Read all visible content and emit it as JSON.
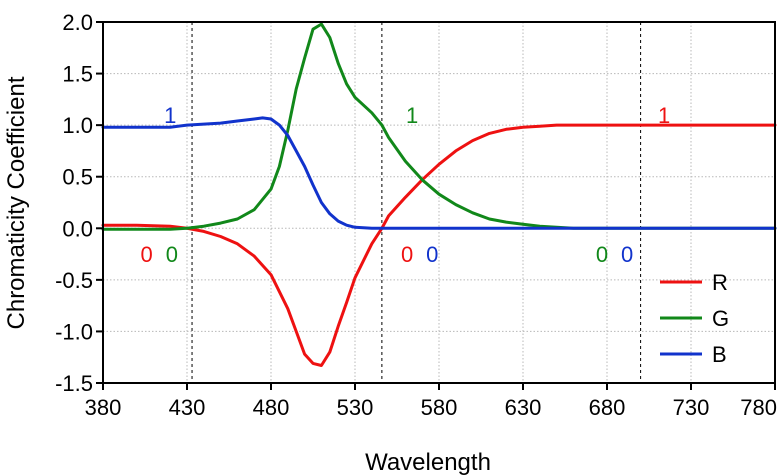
{
  "chart_data": {
    "type": "line",
    "title": "",
    "xlabel": "Wavelength",
    "ylabel": "Chromaticity Coefficient",
    "xlim": [
      380,
      780
    ],
    "ylim": [
      -1.5,
      2.0
    ],
    "xticks": [
      "380",
      "430",
      "480",
      "530",
      "580",
      "630",
      "680",
      "730",
      "780"
    ],
    "yticks": [
      "2.0",
      "1.5",
      "1.0",
      "0.5",
      "0.0",
      "-0.5",
      "-1.0",
      "-1.5"
    ],
    "grid": true,
    "legend_position": "bottom-right",
    "vertical_reference_lines_x": [
      433,
      546,
      700
    ],
    "series": [
      {
        "name": "R",
        "color": "#ee1111",
        "x": [
          380,
          400,
          420,
          430,
          440,
          450,
          460,
          470,
          480,
          490,
          495,
          500,
          505,
          510,
          515,
          520,
          525,
          530,
          540,
          546,
          550,
          560,
          570,
          580,
          590,
          600,
          610,
          620,
          630,
          640,
          650,
          660,
          680,
          700,
          730,
          780
        ],
        "y": [
          0.03,
          0.03,
          0.02,
          0.0,
          -0.03,
          -0.08,
          -0.15,
          -0.27,
          -0.45,
          -0.78,
          -1.0,
          -1.22,
          -1.31,
          -1.33,
          -1.2,
          -0.95,
          -0.72,
          -0.48,
          -0.15,
          0.0,
          0.12,
          0.3,
          0.47,
          0.62,
          0.75,
          0.85,
          0.92,
          0.96,
          0.98,
          0.99,
          1.0,
          1.0,
          1.0,
          1.0,
          1.0,
          1.0
        ]
      },
      {
        "name": "G",
        "color": "#11881a",
        "x": [
          380,
          420,
          430,
          440,
          450,
          460,
          470,
          480,
          485,
          490,
          495,
          500,
          505,
          510,
          515,
          520,
          525,
          530,
          540,
          546,
          550,
          560,
          570,
          580,
          590,
          600,
          610,
          620,
          630,
          640,
          650,
          660,
          680,
          700,
          730,
          780
        ],
        "y": [
          -0.01,
          -0.01,
          0.0,
          0.02,
          0.05,
          0.09,
          0.18,
          0.38,
          0.6,
          0.95,
          1.35,
          1.65,
          1.93,
          1.98,
          1.85,
          1.6,
          1.4,
          1.27,
          1.12,
          1.0,
          0.88,
          0.65,
          0.47,
          0.33,
          0.23,
          0.15,
          0.09,
          0.06,
          0.04,
          0.02,
          0.01,
          0.0,
          0.0,
          0.0,
          0.0,
          0.0
        ]
      },
      {
        "name": "B",
        "color": "#1133cc",
        "x": [
          380,
          400,
          420,
          430,
          440,
          450,
          460,
          470,
          475,
          480,
          485,
          490,
          495,
          500,
          505,
          510,
          515,
          520,
          525,
          530,
          540,
          546,
          560,
          600,
          680,
          730,
          780
        ],
        "y": [
          0.98,
          0.98,
          0.98,
          1.0,
          1.01,
          1.02,
          1.04,
          1.06,
          1.07,
          1.06,
          1.0,
          0.9,
          0.75,
          0.6,
          0.42,
          0.25,
          0.14,
          0.07,
          0.03,
          0.01,
          0.0,
          0.0,
          0.0,
          0.0,
          0.0,
          0.0,
          0.0
        ]
      }
    ],
    "annotations": [
      {
        "text": "1",
        "x": 420,
        "y": 1.1,
        "color": "#1133cc"
      },
      {
        "text": "1",
        "x": 564,
        "y": 1.1,
        "color": "#11881a"
      },
      {
        "text": "1",
        "x": 714,
        "y": 1.1,
        "color": "#ee1111"
      },
      {
        "text": "0",
        "x": 406,
        "y": -0.25,
        "color": "#ee1111"
      },
      {
        "text": "0",
        "x": 421,
        "y": -0.25,
        "color": "#11881a"
      },
      {
        "text": "0",
        "x": 561,
        "y": -0.25,
        "color": "#ee1111"
      },
      {
        "text": "0",
        "x": 576,
        "y": -0.25,
        "color": "#1133cc"
      },
      {
        "text": "0",
        "x": 677,
        "y": -0.25,
        "color": "#11881a"
      },
      {
        "text": "0",
        "x": 692,
        "y": -0.25,
        "color": "#1133cc"
      }
    ]
  }
}
